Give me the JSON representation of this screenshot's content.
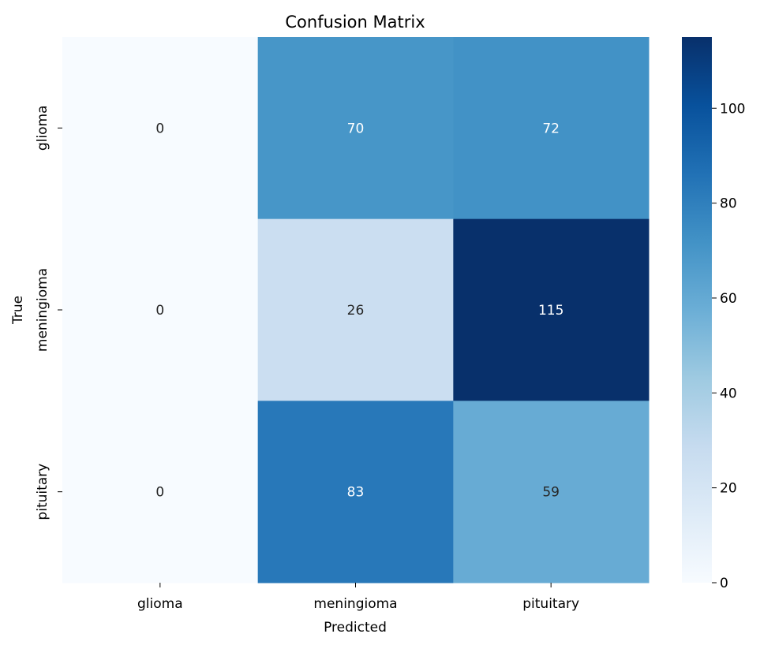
{
  "chart_data": {
    "type": "heatmap",
    "title": "Confusion Matrix",
    "xlabel": "Predicted",
    "ylabel": "True",
    "x_categories": [
      "glioma",
      "meningioma",
      "pituitary"
    ],
    "y_categories": [
      "glioma",
      "meningioma",
      "pituitary"
    ],
    "values": [
      [
        0,
        70,
        72
      ],
      [
        0,
        26,
        115
      ],
      [
        0,
        83,
        59
      ]
    ],
    "colormap": "Blues",
    "colorbar": {
      "range": [
        0,
        115
      ],
      "ticks": [
        0,
        20,
        40,
        60,
        80,
        100
      ],
      "tick_labels": [
        "0",
        "20",
        "40",
        "60",
        "80",
        "100"
      ]
    },
    "colors": {
      "low": "#f7fbff",
      "high": "#08306b"
    },
    "grid": false,
    "legend": "colorbar-right"
  }
}
